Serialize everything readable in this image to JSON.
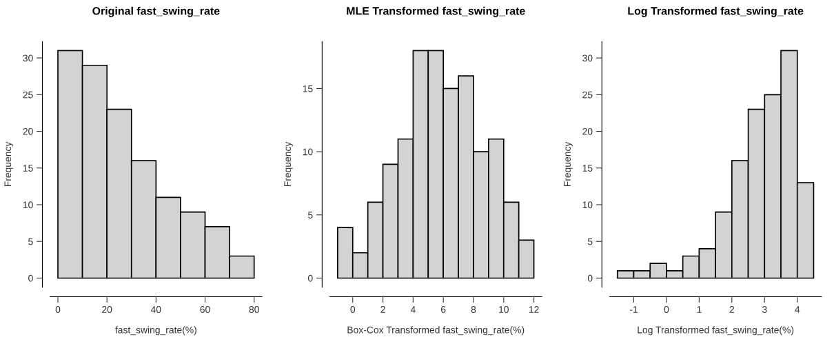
{
  "chart_data": [
    {
      "type": "histogram",
      "title": "Original fast_swing_rate",
      "xlabel": "fast_swing_rate(%)",
      "ylabel": "Frequency",
      "color": "#d3d3d3",
      "bins": [
        0,
        10,
        20,
        30,
        40,
        50,
        60,
        70,
        80
      ],
      "values": [
        31,
        29,
        23,
        16,
        11,
        9,
        7,
        3
      ],
      "xlim": [
        -3.2,
        83.2
      ],
      "xticks": [
        0,
        20,
        40,
        60,
        80
      ],
      "ylim": [
        -1.24,
        32.24
      ],
      "yticks": [
        0,
        5,
        10,
        15,
        20,
        25,
        30
      ],
      "grid": false,
      "legend": false
    },
    {
      "type": "histogram",
      "title": "MLE Transformed fast_swing_rate",
      "xlabel": "Box-Cox Transformed fast_swing_rate(%)",
      "ylabel": "Frequency",
      "color": "#d3d3d3",
      "bins": [
        -1,
        0,
        1,
        2,
        3,
        4,
        5,
        6,
        7,
        8,
        9,
        10,
        11,
        12
      ],
      "values": [
        4,
        2,
        6,
        9,
        11,
        18,
        18,
        15,
        16,
        10,
        11,
        6,
        3
      ],
      "xlim": [
        -1.52,
        12.52
      ],
      "xticks": [
        0,
        2,
        4,
        6,
        8,
        10,
        12
      ],
      "ylim": [
        -0.72,
        18.72
      ],
      "yticks": [
        0,
        5,
        10,
        15
      ],
      "grid": false,
      "legend": false
    },
    {
      "type": "histogram",
      "title": "Log Transformed fast_swing_rate",
      "xlabel": "Log Transformed fast_swing_rate(%)",
      "ylabel": "Frequency",
      "color": "#d3d3d3",
      "bins": [
        -1.5,
        -1,
        -0.5,
        0,
        0.5,
        1,
        1.5,
        2,
        2.5,
        3,
        3.5,
        4,
        4.5
      ],
      "values": [
        1,
        1,
        2,
        1,
        3,
        4,
        9,
        16,
        23,
        25,
        31,
        13
      ],
      "xlim": [
        -1.74,
        4.74
      ],
      "xticks": [
        {
          "value": -1,
          "label": "-1"
        },
        0,
        1,
        2,
        3,
        4
      ],
      "ylim": [
        -1.24,
        32.24
      ],
      "yticks": [
        0,
        5,
        10,
        15,
        20,
        25,
        30
      ],
      "grid": false,
      "legend": false
    }
  ]
}
